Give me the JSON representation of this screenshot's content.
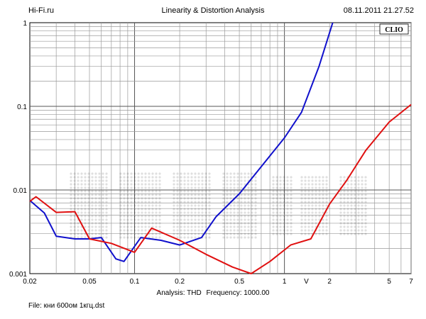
{
  "header": {
    "site": "Hi-Fi.ru",
    "title": "Linearity & Distortion Analysis",
    "datetime": "08.11.2011 21.27.52"
  },
  "badge": "CLIO",
  "footer": {
    "analysis": "Analysis: THD",
    "frequency": "Frequency: 1000.00",
    "file": "File: кни 600ом 1кгц.dst"
  },
  "chart_data": {
    "type": "line",
    "xscale": "log",
    "yscale": "log",
    "xlim": [
      0.02,
      7
    ],
    "ylim": [
      0.001,
      1
    ],
    "xlabel": "V",
    "ylabel": "",
    "x_tick_labels": [
      "0.02",
      "0.05",
      "0.1",
      "0.2",
      "0.5",
      "1",
      "2",
      "5",
      "7"
    ],
    "y_tick_labels": [
      "1",
      "0.1",
      "0.01",
      "0.001"
    ],
    "grid": true,
    "series": [
      {
        "color": "#1010cc",
        "points": [
          [
            0.02,
            0.0075
          ],
          [
            0.025,
            0.0053
          ],
          [
            0.03,
            0.0028
          ],
          [
            0.04,
            0.0026
          ],
          [
            0.05,
            0.0026
          ],
          [
            0.06,
            0.0027
          ],
          [
            0.075,
            0.0015
          ],
          [
            0.085,
            0.0014
          ],
          [
            0.11,
            0.0027
          ],
          [
            0.15,
            0.0025
          ],
          [
            0.2,
            0.0022
          ],
          [
            0.28,
            0.0027
          ],
          [
            0.35,
            0.0048
          ],
          [
            0.5,
            0.009
          ],
          [
            0.7,
            0.019
          ],
          [
            1.0,
            0.042
          ],
          [
            1.3,
            0.085
          ],
          [
            1.7,
            0.3
          ],
          [
            2.1,
            1.0
          ]
        ]
      },
      {
        "color": "#e01010",
        "points": [
          [
            0.02,
            0.0073
          ],
          [
            0.022,
            0.0083
          ],
          [
            0.03,
            0.0054
          ],
          [
            0.04,
            0.0055
          ],
          [
            0.05,
            0.0026
          ],
          [
            0.07,
            0.0023
          ],
          [
            0.1,
            0.0018
          ],
          [
            0.13,
            0.0035
          ],
          [
            0.2,
            0.0025
          ],
          [
            0.3,
            0.0017
          ],
          [
            0.45,
            0.0012
          ],
          [
            0.6,
            0.001
          ],
          [
            0.8,
            0.0014
          ],
          [
            1.1,
            0.0022
          ],
          [
            1.5,
            0.0026
          ],
          [
            2.0,
            0.0068
          ],
          [
            2.6,
            0.013
          ],
          [
            3.5,
            0.03
          ],
          [
            5.0,
            0.065
          ],
          [
            7.0,
            0.105
          ]
        ]
      }
    ]
  }
}
